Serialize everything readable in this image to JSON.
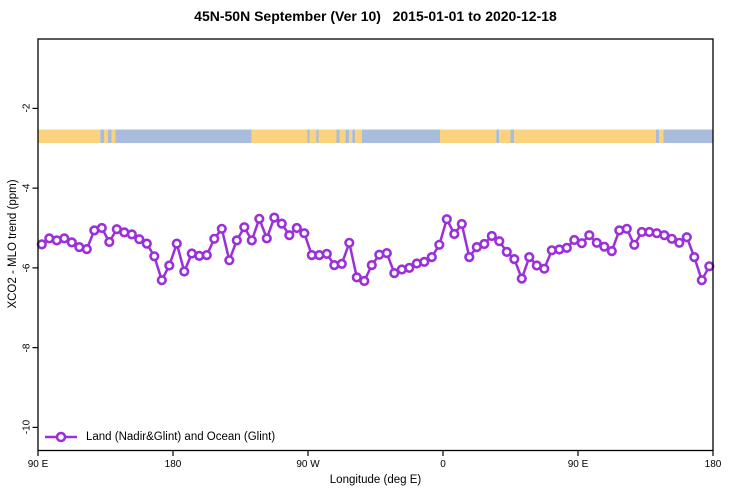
{
  "title": "45N-50N September (Ver 10)   2015-01-01 to 2020-12-18",
  "legend": {
    "label": "Land (Nadir&Glint) and Ocean (Glint)"
  },
  "colors": {
    "series": "#9B30D9",
    "marker_fill": "#FFFFFF",
    "land": "#FBD37E",
    "ocean": "#A8BDDB",
    "axis": "#000000"
  },
  "chart_data": {
    "type": "line",
    "title": "45N-50N September (Ver 10)   2015-01-01 to 2020-12-18",
    "xlabel": "Longitude (deg E)",
    "ylabel": "XCO2 - MLO trend (ppm)",
    "xlim": [
      90,
      540
    ],
    "ylim": [
      -10.58,
      -0.26
    ],
    "grid": false,
    "legend_position": "bottom-left",
    "xticks": [
      {
        "pos": 90,
        "label": "90 E"
      },
      {
        "pos": 180,
        "label": "180"
      },
      {
        "pos": 270,
        "label": "90 W"
      },
      {
        "pos": 360,
        "label": "0"
      },
      {
        "pos": 450,
        "label": "90 E"
      },
      {
        "pos": 540,
        "label": "180"
      }
    ],
    "yticks": [
      {
        "pos": -2,
        "label": "-2"
      },
      {
        "pos": -4,
        "label": "-4"
      },
      {
        "pos": -6,
        "label": "-6"
      },
      {
        "pos": -8,
        "label": "-8"
      },
      {
        "pos": -10,
        "label": "-10"
      }
    ],
    "x_axis_wraps_longitude": true,
    "series": [
      {
        "name": "Land (Nadir&Glint) and Ocean (Glint)",
        "marker": "open-circle",
        "x_start": 92.5,
        "x_step": 5,
        "values": [
          -5.41,
          -5.26,
          -5.31,
          -5.26,
          -5.36,
          -5.48,
          -5.53,
          -5.06,
          -5.0,
          -5.35,
          -5.03,
          -5.11,
          -5.16,
          -5.28,
          -5.39,
          -5.71,
          -6.31,
          -5.94,
          -5.39,
          -6.09,
          -5.64,
          -5.7,
          -5.68,
          -5.27,
          -5.02,
          -5.81,
          -5.31,
          -4.98,
          -5.31,
          -4.77,
          -5.26,
          -4.74,
          -4.89,
          -5.18,
          -5.0,
          -5.13,
          -5.68,
          -5.68,
          -5.65,
          -5.93,
          -5.9,
          -5.37,
          -6.24,
          -6.33,
          -5.93,
          -5.67,
          -5.63,
          -6.13,
          -6.04,
          -6.0,
          -5.89,
          -5.85,
          -5.73,
          -5.42,
          -4.78,
          -5.15,
          -4.9,
          -5.73,
          -5.48,
          -5.4,
          -5.2,
          -5.33,
          -5.6,
          -5.78,
          -6.27,
          -5.73,
          -5.94,
          -6.02,
          -5.56,
          -5.54,
          -5.5,
          -5.3,
          -5.38,
          -5.18,
          -5.37,
          -5.47,
          -5.58,
          -5.06,
          -5.02,
          -5.42,
          -5.1,
          -5.1,
          -5.13,
          -5.18,
          -5.27,
          -5.37,
          -5.23,
          -5.73,
          -6.31,
          -5.96
        ]
      }
    ],
    "map_strip": {
      "description": "45N-50N latitude band land/ocean strip",
      "y_top": -2.53,
      "y_bottom": -2.87,
      "segments": [
        [
          90,
          131.5,
          "land"
        ],
        [
          131.5,
          134,
          "ocean"
        ],
        [
          134,
          136.5,
          "land"
        ],
        [
          136.5,
          139,
          "ocean"
        ],
        [
          139,
          141.5,
          "land"
        ],
        [
          141.5,
          232.5,
          "ocean"
        ],
        [
          232.5,
          269.5,
          "land"
        ],
        [
          269.5,
          271,
          "ocean"
        ],
        [
          271,
          275.5,
          "land"
        ],
        [
          275.5,
          277,
          "ocean"
        ],
        [
          277,
          289,
          "land"
        ],
        [
          289,
          291,
          "ocean"
        ],
        [
          291,
          295,
          "land"
        ],
        [
          295,
          297.5,
          "ocean"
        ],
        [
          297.5,
          299.5,
          "land"
        ],
        [
          299.5,
          301.5,
          "ocean"
        ],
        [
          301.5,
          306,
          "land"
        ],
        [
          306,
          358,
          "ocean"
        ],
        [
          358,
          395.5,
          "land"
        ],
        [
          395.5,
          397.5,
          "ocean"
        ],
        [
          397.5,
          405,
          "land"
        ],
        [
          405,
          407.5,
          "ocean"
        ],
        [
          407.5,
          502,
          "land"
        ],
        [
          502,
          504,
          "ocean"
        ],
        [
          504,
          507,
          "land"
        ],
        [
          507,
          540,
          "ocean"
        ]
      ]
    }
  }
}
